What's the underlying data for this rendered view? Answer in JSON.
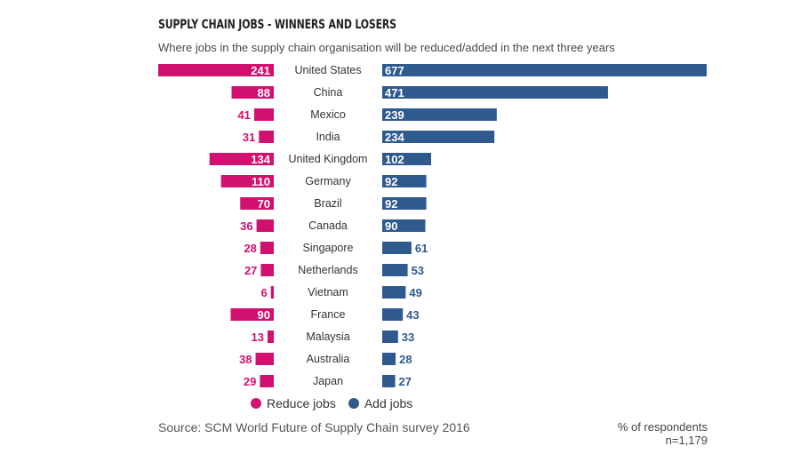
{
  "colors": {
    "reduce": "#d0116f",
    "add": "#2e5a8e"
  },
  "legend": {
    "reduce_label": "Reduce jobs",
    "add_label": "Add jobs"
  },
  "footer": {
    "source": "Source: SCM World Future of Supply Chain survey 2016",
    "note_line1": "% of respondents",
    "note_line2": "n=1,179"
  },
  "chart_data": {
    "type": "bar",
    "title": "SUPPLY CHAIN JOBS - WINNERS AND LOSERS",
    "subtitle": "Where jobs in the supply chain organisation will be reduced/added in the next three years",
    "categories": [
      "United States",
      "China",
      "Mexico",
      "India",
      "United Kingdom",
      "Germany",
      "Brazil",
      "Canada",
      "Singapore",
      "Netherlands",
      "Vietnam",
      "France",
      "Malaysia",
      "Australia",
      "Japan"
    ],
    "series": [
      {
        "name": "Reduce jobs",
        "values": [
          241,
          88,
          41,
          31,
          134,
          110,
          70,
          36,
          28,
          27,
          6,
          90,
          13,
          38,
          29
        ]
      },
      {
        "name": "Add jobs",
        "values": [
          677,
          471,
          239,
          234,
          102,
          92,
          92,
          90,
          61,
          53,
          49,
          43,
          33,
          28,
          27
        ]
      }
    ]
  }
}
